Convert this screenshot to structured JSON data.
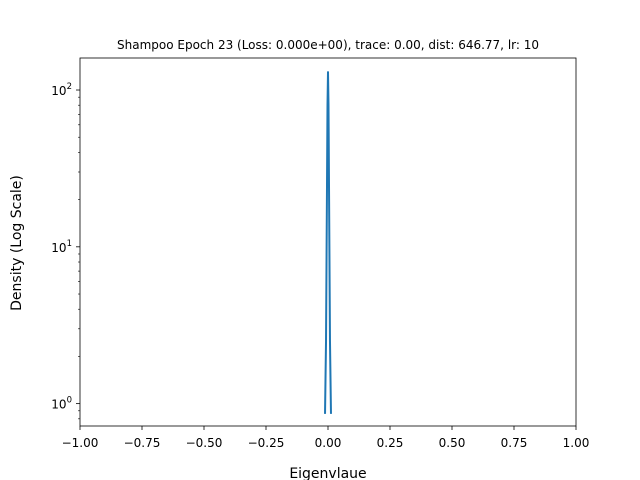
{
  "chart_data": {
    "type": "line",
    "title": "Shampoo Epoch 23 (Loss: 0.000e+00), trace: 0.00, dist: 646.77, lr: 10",
    "xlabel": "Eigenvlaue",
    "ylabel": "Density (Log Scale)",
    "xlim": [
      -1.0,
      1.0
    ],
    "ylim": [
      0.72,
      160
    ],
    "yscale": "log",
    "grid": false,
    "x_tick_labels": [
      "−1.00",
      "−0.75",
      "−0.50",
      "−0.25",
      "0.00",
      "0.25",
      "0.50",
      "0.75",
      "1.00"
    ],
    "x_ticks": [
      -1.0,
      -0.75,
      -0.5,
      -0.25,
      0.0,
      0.25,
      0.5,
      0.75,
      1.0
    ],
    "y_ticks": [
      {
        "value": 1,
        "base": "10",
        "exp": "0"
      },
      {
        "value": 10,
        "base": "10",
        "exp": "1"
      },
      {
        "value": 100,
        "base": "10",
        "exp": "2"
      }
    ],
    "series": [
      {
        "color": "#1f77b4",
        "x": [
          -0.012,
          -0.008,
          -0.004,
          -0.002,
          0.0,
          0.002,
          0.004,
          0.008,
          0.012
        ],
        "y": [
          0.86,
          2.5,
          25,
          80,
          130,
          80,
          25,
          2.5,
          0.86
        ]
      }
    ]
  }
}
